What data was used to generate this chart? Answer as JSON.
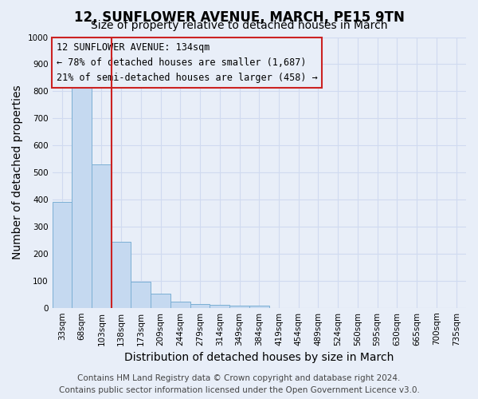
{
  "title": "12, SUNFLOWER AVENUE, MARCH, PE15 9TN",
  "subtitle": "Size of property relative to detached houses in March",
  "xlabel": "Distribution of detached houses by size in March",
  "ylabel": "Number of detached properties",
  "bar_labels": [
    "33sqm",
    "68sqm",
    "103sqm",
    "138sqm",
    "173sqm",
    "209sqm",
    "244sqm",
    "279sqm",
    "314sqm",
    "349sqm",
    "384sqm",
    "419sqm",
    "454sqm",
    "489sqm",
    "524sqm",
    "560sqm",
    "595sqm",
    "630sqm",
    "665sqm",
    "700sqm",
    "735sqm"
  ],
  "bar_values": [
    390,
    830,
    530,
    245,
    95,
    52,
    22,
    15,
    10,
    8,
    8,
    0,
    0,
    0,
    0,
    0,
    0,
    0,
    0,
    0,
    0
  ],
  "bar_color": "#c5d9f0",
  "bar_edge_color": "#7bafd4",
  "ylim": [
    0,
    1000
  ],
  "yticks": [
    0,
    100,
    200,
    300,
    400,
    500,
    600,
    700,
    800,
    900,
    1000
  ],
  "property_line_index": 3,
  "property_line_color": "#cc2222",
  "annotation_text": "12 SUNFLOWER AVENUE: 134sqm\n← 78% of detached houses are smaller (1,687)\n21% of semi-detached houses are larger (458) →",
  "annotation_box_color": "#cc2222",
  "footer_line1": "Contains HM Land Registry data © Crown copyright and database right 2024.",
  "footer_line2": "Contains public sector information licensed under the Open Government Licence v3.0.",
  "background_color": "#e8eef8",
  "grid_color": "#d0daf0",
  "title_fontsize": 12,
  "subtitle_fontsize": 10,
  "axis_label_fontsize": 10,
  "tick_fontsize": 7.5,
  "annotation_fontsize": 8.5,
  "footer_fontsize": 7.5
}
